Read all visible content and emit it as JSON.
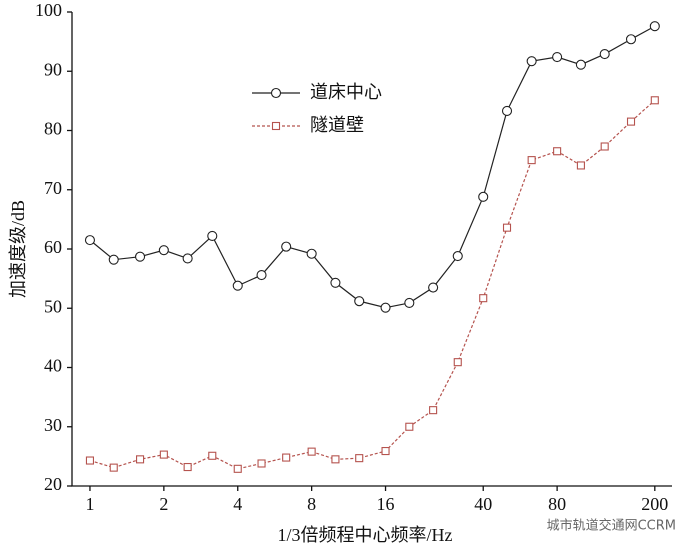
{
  "chart_data": {
    "type": "line",
    "xlabel": "1/3倍频程中心频率/Hz",
    "ylabel": "加速度级/dB",
    "watermark": "城市轨道交通网CCRM",
    "x": [
      1,
      1.25,
      1.6,
      2,
      2.5,
      3.15,
      4,
      5,
      6.3,
      8,
      10,
      12.5,
      16,
      20,
      25,
      31.5,
      40,
      50,
      63,
      80,
      100,
      125,
      160,
      200
    ],
    "xscale": "log",
    "xlim": [
      0.845,
      235
    ],
    "xticks": [
      1,
      2,
      4,
      8,
      16,
      40,
      80,
      200
    ],
    "ylim": [
      20,
      100
    ],
    "yticks": [
      20,
      30,
      40,
      50,
      60,
      70,
      80,
      90,
      100
    ],
    "series": [
      {
        "name": "道床中心",
        "color": "#222222",
        "marker": "circle",
        "dashed": false,
        "values": [
          61.5,
          58.2,
          58.7,
          59.8,
          58.4,
          62.2,
          53.8,
          55.6,
          60.4,
          59.2,
          54.3,
          51.2,
          50.1,
          50.9,
          53.5,
          58.8,
          68.8,
          83.3,
          91.7,
          92.4,
          91.1,
          92.9,
          95.4,
          97.6
        ]
      },
      {
        "name": "隧道壁",
        "color": "#b5534e",
        "marker": "square",
        "dashed": true,
        "values": [
          24.3,
          23.1,
          24.5,
          25.3,
          23.2,
          25.1,
          22.9,
          23.8,
          24.8,
          25.8,
          24.5,
          24.7,
          25.9,
          30.0,
          32.8,
          40.9,
          51.7,
          63.6,
          75.0,
          76.5,
          74.1,
          77.3,
          81.5,
          85.1
        ]
      }
    ]
  }
}
